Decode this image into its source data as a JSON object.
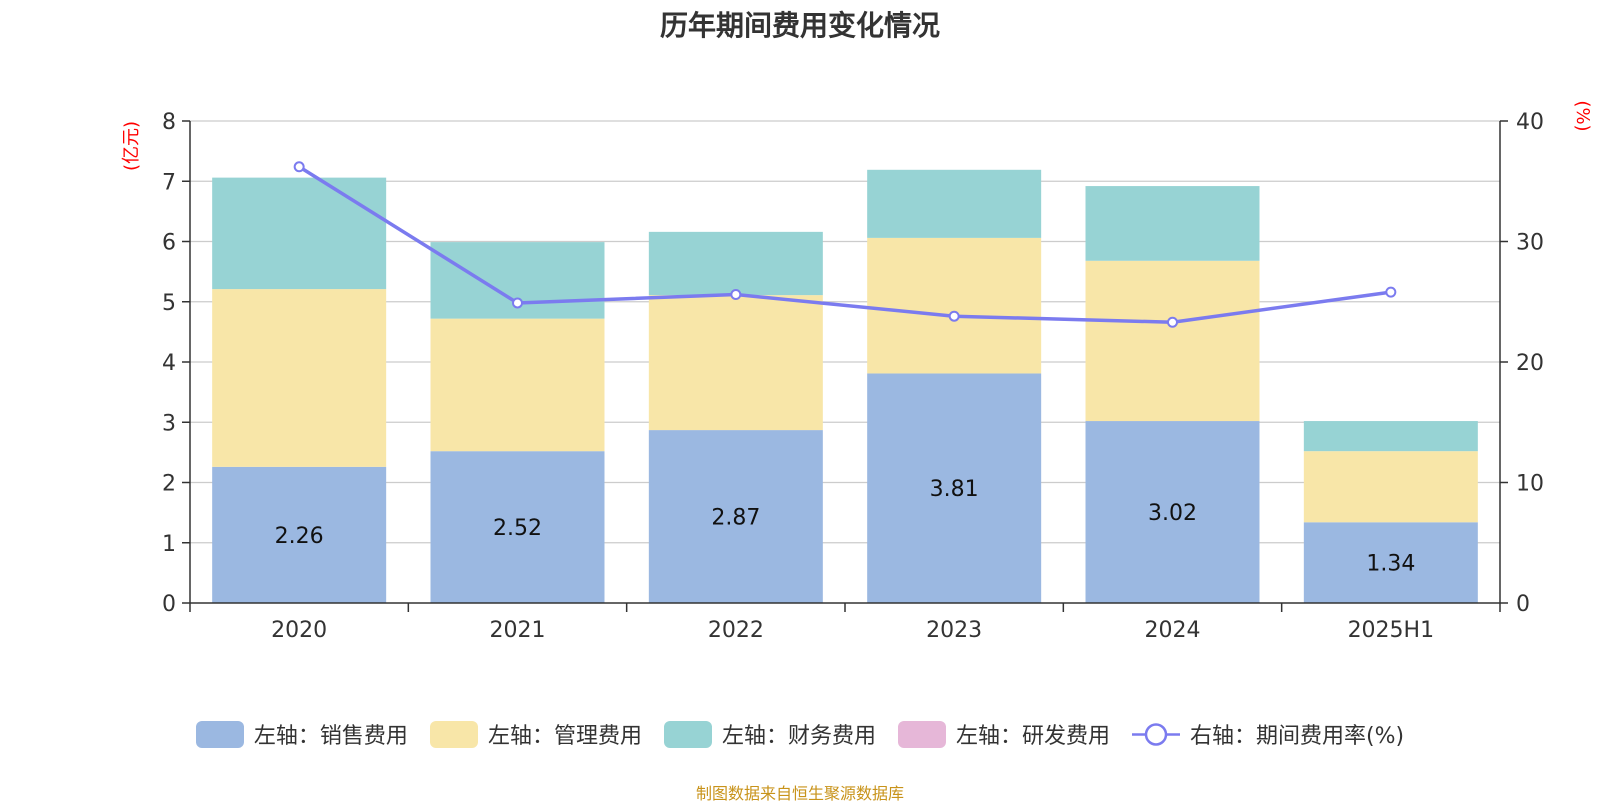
{
  "chart_data": {
    "type": "bar",
    "title": "历年期间费用变化情况",
    "categories": [
      "2020",
      "2021",
      "2022",
      "2023",
      "2024",
      "2025H1"
    ],
    "left_axis": {
      "unit_label": "(亿元)",
      "ylim": [
        0,
        8
      ],
      "ticks": [
        "0",
        "1",
        "2",
        "3",
        "4",
        "5",
        "6",
        "7",
        "8"
      ]
    },
    "right_axis": {
      "unit_label": "(%)",
      "ylim": [
        0,
        40
      ],
      "ticks": [
        "0",
        "10",
        "20",
        "30",
        "40"
      ]
    },
    "series": [
      {
        "name": "左轴：销售费用",
        "axis": "left",
        "kind": "bar",
        "color": "#9bb8e1",
        "values": [
          2.26,
          2.52,
          2.87,
          3.81,
          3.02,
          1.34
        ],
        "labels": [
          "2.26",
          "2.52",
          "2.87",
          "3.81",
          "3.02",
          "1.34"
        ]
      },
      {
        "name": "左轴：管理费用",
        "axis": "left",
        "kind": "bar",
        "color": "#f8e6a8",
        "values": [
          2.95,
          2.2,
          2.24,
          2.25,
          2.66,
          1.18
        ]
      },
      {
        "name": "左轴：财务费用",
        "axis": "left",
        "kind": "bar",
        "color": "#97d3d4",
        "values": [
          1.85,
          1.27,
          1.05,
          1.13,
          1.24,
          0.5
        ]
      },
      {
        "name": "左轴：研发费用",
        "axis": "left",
        "kind": "bar",
        "color": "#e6b7d8",
        "values": [
          0,
          0,
          0,
          0,
          0,
          0
        ]
      },
      {
        "name": "右轴：期间费用率(%)",
        "axis": "right",
        "kind": "line",
        "color": "#7b7bef",
        "values": [
          36.2,
          24.9,
          25.6,
          23.8,
          23.3,
          25.8
        ]
      }
    ],
    "grid": true,
    "legend_position": "bottom"
  },
  "source_note": "制图数据来自恒生聚源数据库"
}
